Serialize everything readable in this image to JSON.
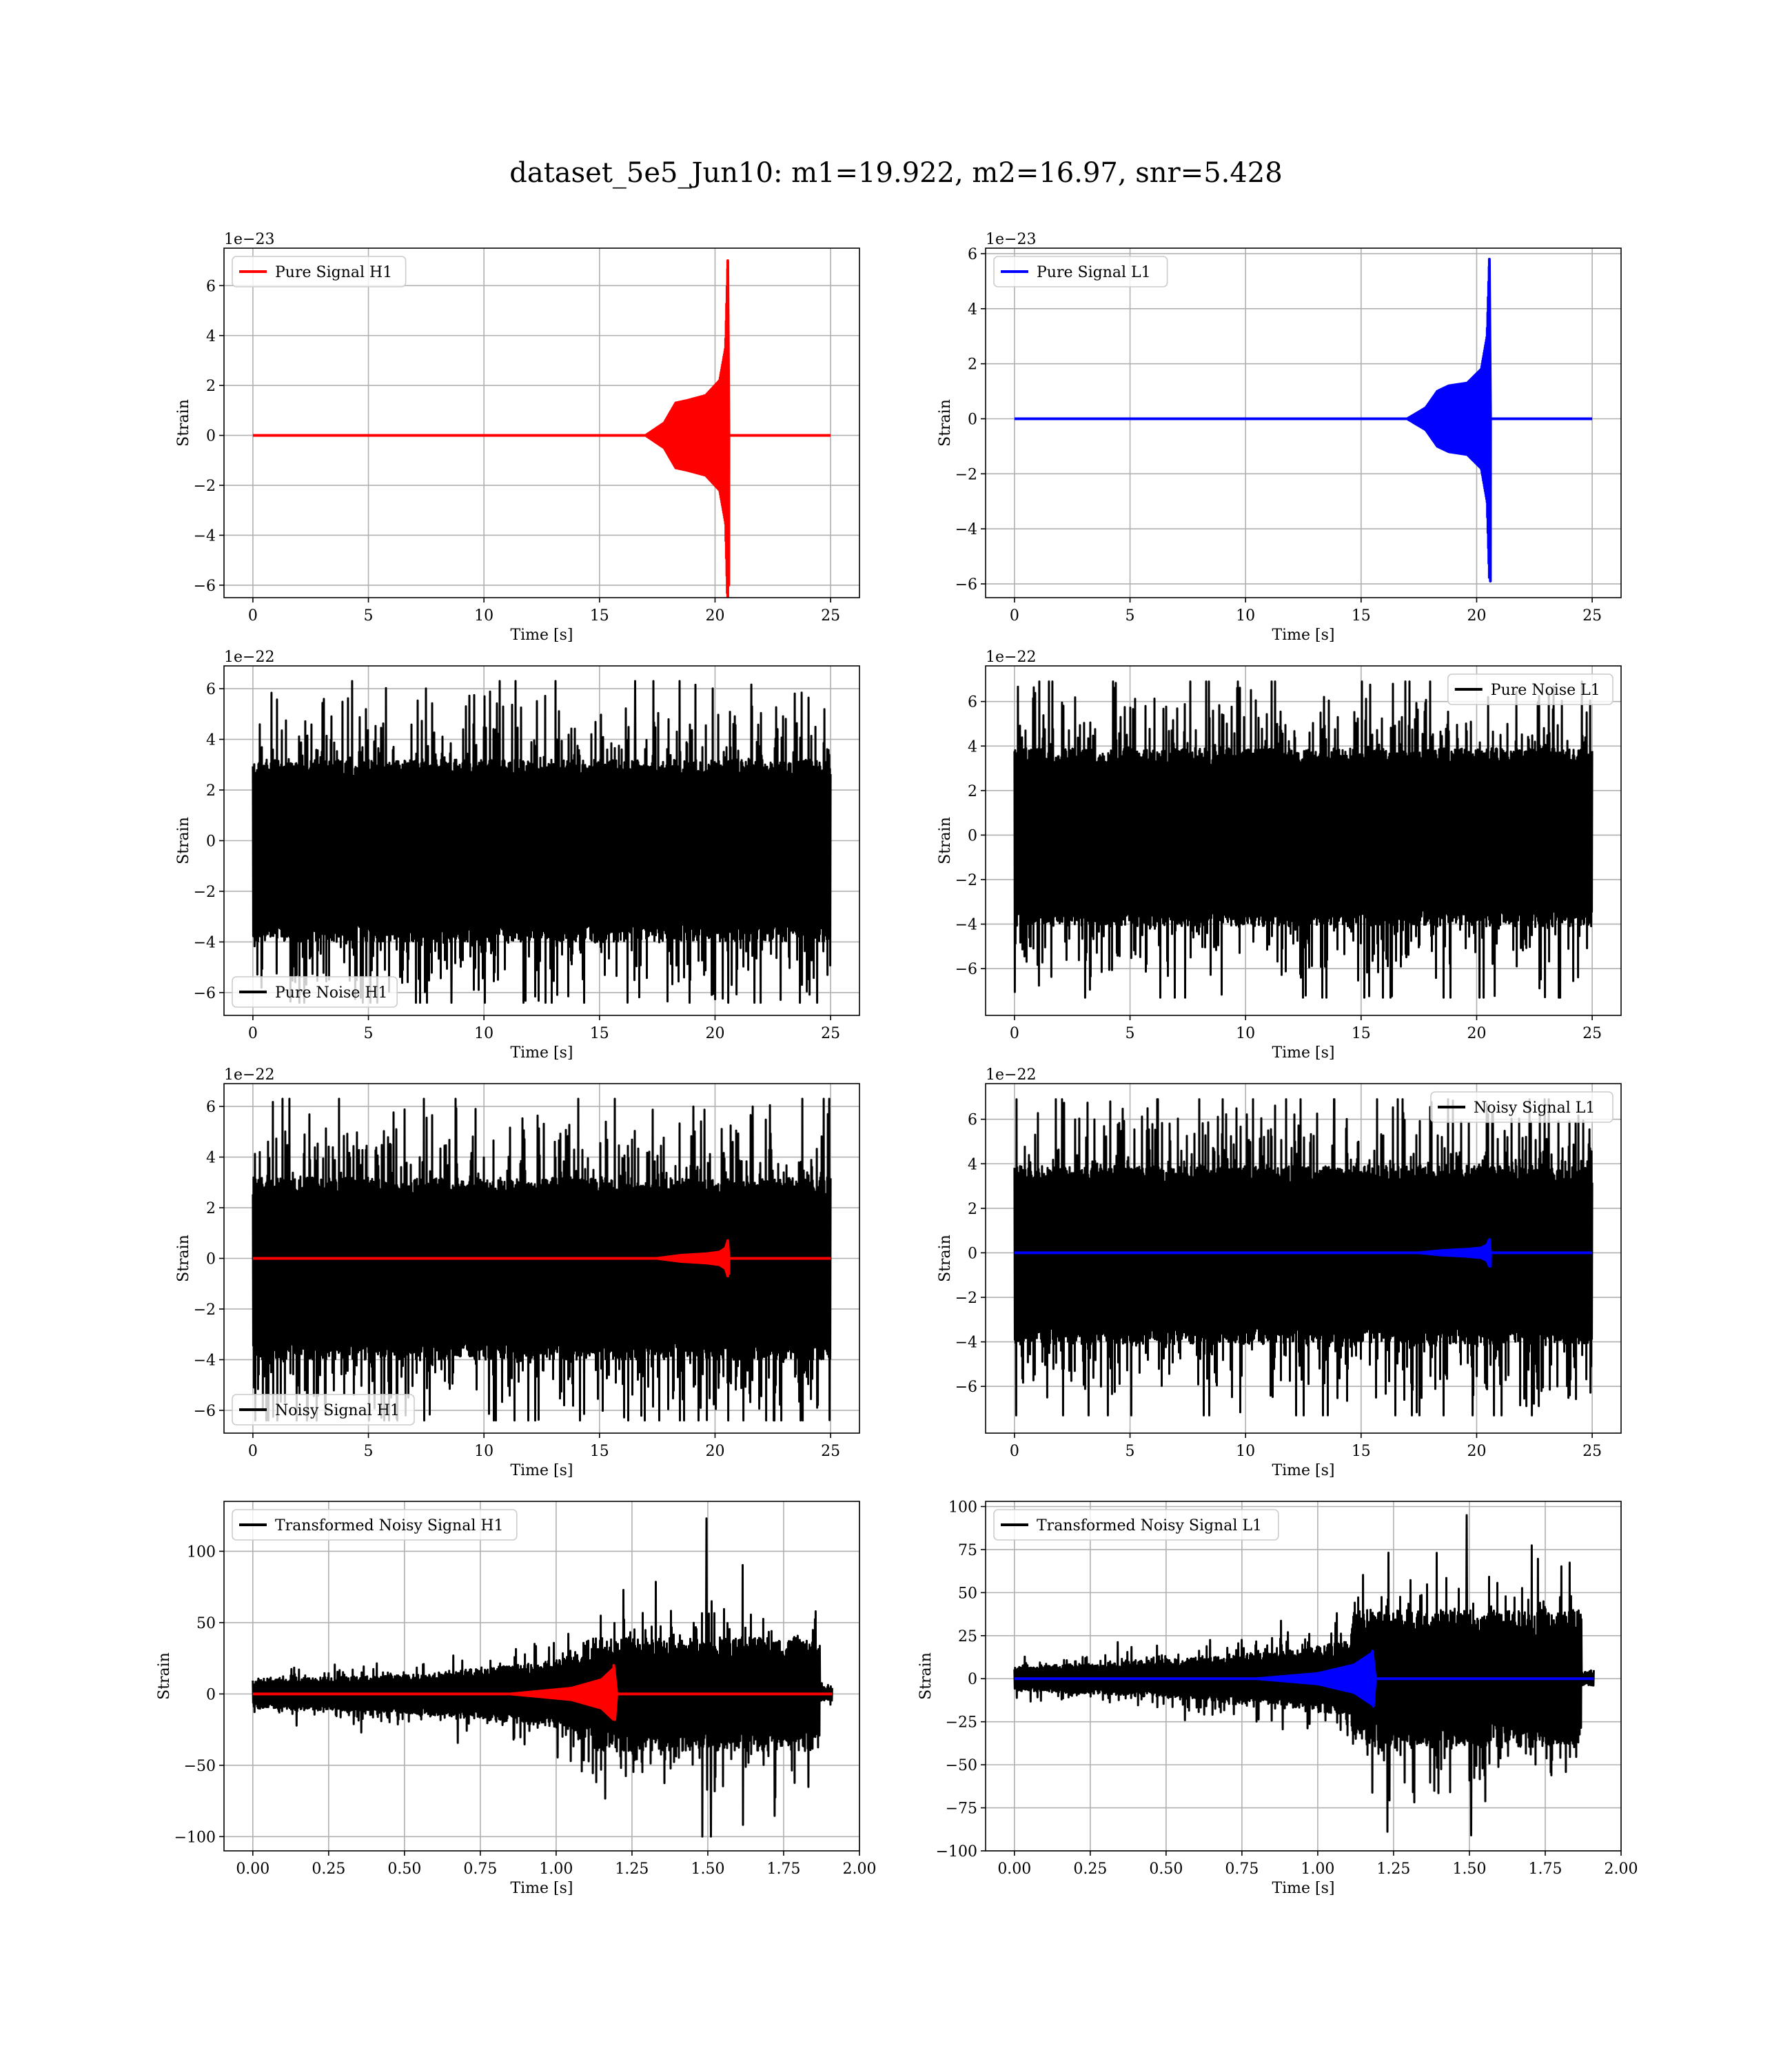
{
  "figure": {
    "title": "dataset_5e5_Jun10: m1=19.922, m2=16.97, snr=5.428"
  },
  "chart_data": [
    {
      "type": "line",
      "id": "pure-signal-h1",
      "xlabel": "Time [s]",
      "ylabel": "Strain",
      "offset_text": "1e−23",
      "xlim": [
        -1.25,
        26.25
      ],
      "ylim": [
        -6.5,
        7.5
      ],
      "xticks": [
        0,
        5,
        10,
        15,
        20,
        25
      ],
      "xtick_labels": [
        "0",
        "5",
        "10",
        "15",
        "20",
        "25"
      ],
      "yticks": [
        -6,
        -4,
        -2,
        0,
        2,
        4,
        6
      ],
      "ytick_labels": [
        "−6",
        "−4",
        "−2",
        "0",
        "2",
        "4",
        "6"
      ],
      "legend_loc": "upper left",
      "grid": true,
      "series": [
        {
          "name": "Pure Signal H1",
          "color": "#ff0000",
          "kind": "chirp",
          "x_start": 0,
          "x_end": 25,
          "baseline": 0,
          "envelope": [
            [
              17.0,
              0.0
            ],
            [
              17.8,
              0.5
            ],
            [
              18.3,
              1.3
            ],
            [
              18.8,
              1.4
            ],
            [
              19.6,
              1.6
            ],
            [
              20.2,
              2.2
            ],
            [
              20.45,
              3.5
            ],
            [
              20.55,
              7.0
            ],
            [
              20.6,
              0.0
            ]
          ],
          "peak_max": 7.0,
          "peak_min": -6.0
        }
      ]
    },
    {
      "type": "line",
      "id": "pure-signal-l1",
      "xlabel": "Time [s]",
      "ylabel": "Strain",
      "offset_text": "1e−23",
      "xlim": [
        -1.25,
        26.25
      ],
      "ylim": [
        -6.5,
        6.2
      ],
      "xticks": [
        0,
        5,
        10,
        15,
        20,
        25
      ],
      "xtick_labels": [
        "0",
        "5",
        "10",
        "15",
        "20",
        "25"
      ],
      "yticks": [
        -6,
        -4,
        -2,
        0,
        2,
        4,
        6
      ],
      "ytick_labels": [
        "−6",
        "−4",
        "−2",
        "0",
        "2",
        "4",
        "6"
      ],
      "legend_loc": "upper left",
      "grid": true,
      "series": [
        {
          "name": "Pure Signal L1",
          "color": "#0000ff",
          "kind": "chirp",
          "x_start": 0,
          "x_end": 25,
          "baseline": 0,
          "envelope": [
            [
              17.0,
              0.0
            ],
            [
              17.8,
              0.4
            ],
            [
              18.3,
              1.0
            ],
            [
              18.8,
              1.2
            ],
            [
              19.6,
              1.3
            ],
            [
              20.2,
              1.8
            ],
            [
              20.45,
              3.0
            ],
            [
              20.55,
              5.8
            ],
            [
              20.6,
              0.0
            ]
          ],
          "peak_max": 5.8,
          "peak_min": -5.9
        }
      ]
    },
    {
      "type": "line",
      "id": "pure-noise-h1",
      "xlabel": "Time [s]",
      "ylabel": "Strain",
      "offset_text": "1e−22",
      "xlim": [
        -1.25,
        26.25
      ],
      "ylim": [
        -6.9,
        6.9
      ],
      "xticks": [
        0,
        5,
        10,
        15,
        20,
        25
      ],
      "xtick_labels": [
        "0",
        "5",
        "10",
        "15",
        "20",
        "25"
      ],
      "yticks": [
        -6,
        -4,
        -2,
        0,
        2,
        4,
        6
      ],
      "ytick_labels": [
        "−6",
        "−4",
        "−2",
        "0",
        "2",
        "4",
        "6"
      ],
      "legend_loc": "lower left",
      "grid": true,
      "series": [
        {
          "name": "Pure Noise H1",
          "color": "#000000",
          "kind": "noise",
          "x_start": 0,
          "x_end": 25,
          "center": -0.4,
          "band_half": 3.6,
          "max": 6.3,
          "min": -6.4
        }
      ]
    },
    {
      "type": "line",
      "id": "pure-noise-l1",
      "xlabel": "Time [s]",
      "ylabel": "Strain",
      "offset_text": "1e−22",
      "xlim": [
        -1.25,
        26.25
      ],
      "ylim": [
        -8.1,
        7.6
      ],
      "xticks": [
        0,
        5,
        10,
        15,
        20,
        25
      ],
      "xtick_labels": [
        "0",
        "5",
        "10",
        "15",
        "20",
        "25"
      ],
      "yticks": [
        -6,
        -4,
        -2,
        0,
        2,
        4,
        6
      ],
      "ytick_labels": [
        "−6",
        "−4",
        "−2",
        "0",
        "2",
        "4",
        "6"
      ],
      "legend_loc": "upper right",
      "grid": true,
      "series": [
        {
          "name": "Pure Noise L1",
          "color": "#000000",
          "kind": "noise",
          "x_start": 0,
          "x_end": 25,
          "center": -0.1,
          "band_half": 4.0,
          "max": 6.9,
          "min": -7.3
        }
      ]
    },
    {
      "type": "line",
      "id": "noisy-signal-h1",
      "xlabel": "Time [s]",
      "ylabel": "Strain",
      "offset_text": "1e−22",
      "xlim": [
        -1.25,
        26.25
      ],
      "ylim": [
        -6.9,
        6.9
      ],
      "xticks": [
        0,
        5,
        10,
        15,
        20,
        25
      ],
      "xtick_labels": [
        "0",
        "5",
        "10",
        "15",
        "20",
        "25"
      ],
      "yticks": [
        -6,
        -4,
        -2,
        0,
        2,
        4,
        6
      ],
      "ytick_labels": [
        "−6",
        "−4",
        "−2",
        "0",
        "2",
        "4",
        "6"
      ],
      "legend_loc": "lower left",
      "grid": true,
      "series": [
        {
          "name": "Noisy Signal H1",
          "color": "#000000",
          "kind": "noise",
          "x_start": 0,
          "x_end": 25,
          "center": -0.4,
          "band_half": 3.6,
          "max": 6.3,
          "min": -6.4
        },
        {
          "color": "#ff0000",
          "kind": "chirp",
          "x_start": 0,
          "x_end": 25,
          "baseline": 0,
          "envelope": [
            [
              17.5,
              0.0
            ],
            [
              18.5,
              0.12
            ],
            [
              19.6,
              0.18
            ],
            [
              20.2,
              0.25
            ],
            [
              20.45,
              0.4
            ],
            [
              20.55,
              0.7
            ],
            [
              20.6,
              0.0
            ]
          ],
          "peak_max": 0.7,
          "peak_min": -0.6
        }
      ]
    },
    {
      "type": "line",
      "id": "noisy-signal-l1",
      "xlabel": "Time [s]",
      "ylabel": "Strain",
      "offset_text": "1e−22",
      "xlim": [
        -1.25,
        26.25
      ],
      "ylim": [
        -8.1,
        7.6
      ],
      "xticks": [
        0,
        5,
        10,
        15,
        20,
        25
      ],
      "xtick_labels": [
        "0",
        "5",
        "10",
        "15",
        "20",
        "25"
      ],
      "yticks": [
        -6,
        -4,
        -2,
        0,
        2,
        4,
        6
      ],
      "ytick_labels": [
        "−6",
        "−4",
        "−2",
        "0",
        "2",
        "4",
        "6"
      ],
      "legend_loc": "upper right",
      "grid": true,
      "series": [
        {
          "name": "Noisy Signal L1",
          "color": "#000000",
          "kind": "noise",
          "x_start": 0,
          "x_end": 25,
          "center": -0.1,
          "band_half": 4.0,
          "max": 6.9,
          "min": -7.3
        },
        {
          "color": "#0000ff",
          "kind": "chirp",
          "x_start": 0,
          "x_end": 25,
          "baseline": 0,
          "envelope": [
            [
              17.5,
              0.0
            ],
            [
              18.5,
              0.1
            ],
            [
              19.6,
              0.16
            ],
            [
              20.2,
              0.22
            ],
            [
              20.45,
              0.35
            ],
            [
              20.55,
              0.6
            ],
            [
              20.6,
              0.0
            ]
          ],
          "peak_max": 0.6,
          "peak_min": -0.6
        }
      ]
    },
    {
      "type": "line",
      "id": "transformed-noisy-signal-h1",
      "xlabel": "Time [s]",
      "ylabel": "Strain",
      "offset_text": "",
      "xlim": [
        -0.095,
        2.0
      ],
      "ylim": [
        -110,
        135
      ],
      "xticks": [
        0.0,
        0.25,
        0.5,
        0.75,
        1.0,
        1.25,
        1.5,
        1.75,
        2.0
      ],
      "xtick_labels": [
        "0.00",
        "0.25",
        "0.50",
        "0.75",
        "1.00",
        "1.25",
        "1.50",
        "1.75",
        "2.00"
      ],
      "yticks": [
        -100,
        -50,
        0,
        50,
        100
      ],
      "ytick_labels": [
        "−100",
        "−50",
        "0",
        "50",
        "100"
      ],
      "legend_loc": "upper left",
      "grid": true,
      "series": [
        {
          "name": "Transformed Noisy Signal H1",
          "color": "#000000",
          "kind": "segmented-noise",
          "x_start": 0,
          "x_end": 1.91,
          "segments": [
            {
              "x0": 0.0,
              "x1": 0.55,
              "half": [
                10,
                14
              ]
            },
            {
              "x0": 0.55,
              "x1": 0.95,
              "half": [
                14,
                22
              ]
            },
            {
              "x0": 0.95,
              "x1": 1.12,
              "half": [
                22,
                30
              ]
            },
            {
              "x0": 1.12,
              "x1": 1.87,
              "half": [
                40,
                40
              ]
            },
            {
              "x0": 1.87,
              "x1": 1.91,
              "half": [
                5,
                5
              ]
            }
          ],
          "max": 123,
          "min": -100
        },
        {
          "color": "#ff0000",
          "kind": "chirp",
          "x_start": 0,
          "x_end": 1.91,
          "baseline": 0,
          "envelope": [
            [
              0.85,
              0.0
            ],
            [
              1.05,
              4
            ],
            [
              1.15,
              10
            ],
            [
              1.19,
              18
            ],
            [
              1.2,
              0.0
            ]
          ],
          "peak_max": 20,
          "peak_min": -18
        }
      ]
    },
    {
      "type": "line",
      "id": "transformed-noisy-signal-l1",
      "xlabel": "Time [s]",
      "ylabel": "Strain",
      "offset_text": "",
      "xlim": [
        -0.095,
        2.0
      ],
      "ylim": [
        -100,
        103
      ],
      "xticks": [
        0.0,
        0.25,
        0.5,
        0.75,
        1.0,
        1.25,
        1.5,
        1.75,
        2.0
      ],
      "xtick_labels": [
        "0.00",
        "0.25",
        "0.50",
        "0.75",
        "1.00",
        "1.25",
        "1.50",
        "1.75",
        "2.00"
      ],
      "yticks": [
        -100,
        -75,
        -50,
        -25,
        0,
        25,
        50,
        75,
        100
      ],
      "ytick_labels": [
        "−100",
        "−75",
        "−50",
        "−25",
        "0",
        "25",
        "50",
        "75",
        "100"
      ],
      "legend_loc": "upper left",
      "grid": true,
      "series": [
        {
          "name": "Transformed Noisy Signal L1",
          "color": "#000000",
          "kind": "segmented-noise",
          "x_start": 0,
          "x_end": 1.91,
          "segments": [
            {
              "x0": 0.0,
              "x1": 0.4,
              "half": [
                7,
                10
              ]
            },
            {
              "x0": 0.4,
              "x1": 0.9,
              "half": [
                10,
                16
              ]
            },
            {
              "x0": 0.9,
              "x1": 1.11,
              "half": [
                16,
                22
              ]
            },
            {
              "x0": 1.11,
              "x1": 1.87,
              "half": [
                40,
                40
              ]
            },
            {
              "x0": 1.87,
              "x1": 1.91,
              "half": [
                4,
                4
              ]
            }
          ],
          "max": 95,
          "min": -91
        },
        {
          "color": "#0000ff",
          "kind": "chirp",
          "x_start": 0,
          "x_end": 1.91,
          "baseline": 0,
          "envelope": [
            [
              0.8,
              0.0
            ],
            [
              1.0,
              3
            ],
            [
              1.12,
              8
            ],
            [
              1.18,
              15
            ],
            [
              1.19,
              0.0
            ]
          ],
          "peak_max": 16,
          "peak_min": -16
        }
      ]
    }
  ]
}
